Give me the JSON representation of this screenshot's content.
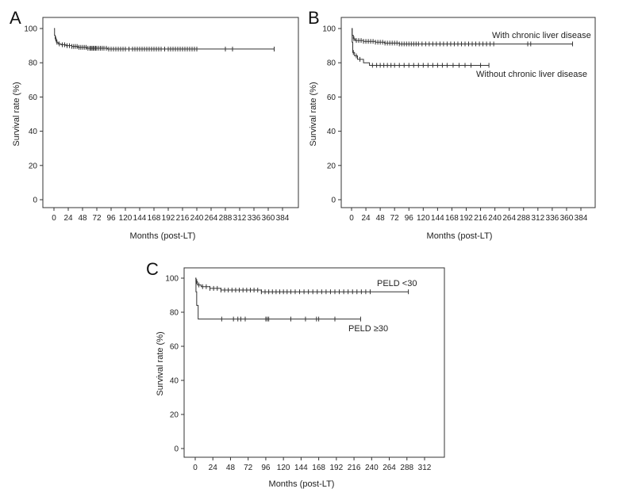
{
  "chart_data": [
    {
      "id": "A",
      "panel_label": "A",
      "type": "line",
      "title": "",
      "xlabel": "Months (post-LT)",
      "ylabel": "Survival rate (%)",
      "xlim": [
        0,
        384
      ],
      "ylim": [
        0,
        100
      ],
      "x_ticks": [
        0,
        24,
        48,
        72,
        96,
        120,
        144,
        168,
        192,
        216,
        240,
        264,
        288,
        312,
        336,
        360,
        384
      ],
      "y_ticks": [
        0,
        20,
        40,
        60,
        80,
        100
      ],
      "grid": false,
      "series": [
        {
          "label": "",
          "steps": [
            [
              0,
              100
            ],
            [
              1,
              96
            ],
            [
              2,
              94
            ],
            [
              4,
              92
            ],
            [
              7,
              91
            ],
            [
              12,
              90.5
            ],
            [
              20,
              90
            ],
            [
              30,
              89.5
            ],
            [
              40,
              89
            ],
            [
              55,
              88.5
            ],
            [
              90,
              88
            ],
            [
              370,
              88
            ]
          ],
          "censored": [
            3,
            5,
            9,
            14,
            18,
            22,
            26,
            30,
            33,
            36,
            39,
            42,
            45,
            48,
            51,
            54,
            57,
            60,
            62,
            64,
            66,
            68,
            70,
            72,
            75,
            78,
            81,
            84,
            88,
            92,
            96,
            100,
            104,
            108,
            112,
            116,
            120,
            126,
            132,
            136,
            140,
            144,
            148,
            152,
            156,
            160,
            164,
            168,
            172,
            176,
            180,
            186,
            192,
            196,
            200,
            204,
            208,
            212,
            216,
            220,
            224,
            228,
            232,
            236,
            240,
            288,
            300,
            370
          ]
        }
      ]
    },
    {
      "id": "B",
      "panel_label": "B",
      "type": "line",
      "title": "",
      "xlabel": "Months (post-LT)",
      "ylabel": "Survival rate (%)",
      "xlim": [
        0,
        384
      ],
      "ylim": [
        0,
        100
      ],
      "x_ticks": [
        0,
        24,
        48,
        72,
        96,
        120,
        144,
        168,
        192,
        216,
        240,
        264,
        288,
        312,
        336,
        360,
        384
      ],
      "y_ticks": [
        0,
        20,
        40,
        60,
        80,
        100
      ],
      "grid": false,
      "series": [
        {
          "label": "With chronic liver disease",
          "steps": [
            [
              0,
              100
            ],
            [
              1,
              96
            ],
            [
              3,
              94
            ],
            [
              6,
              93
            ],
            [
              20,
              92.5
            ],
            [
              40,
              92
            ],
            [
              55,
              91.5
            ],
            [
              80,
              91
            ],
            [
              370,
              91
            ]
          ],
          "censored": [
            4,
            8,
            12,
            16,
            20,
            24,
            28,
            32,
            36,
            40,
            44,
            48,
            52,
            56,
            60,
            64,
            68,
            72,
            76,
            80,
            84,
            88,
            92,
            96,
            100,
            104,
            108,
            112,
            118,
            124,
            130,
            136,
            142,
            148,
            154,
            160,
            166,
            172,
            178,
            184,
            190,
            196,
            202,
            208,
            214,
            220,
            226,
            232,
            238,
            295,
            300,
            370
          ]
        },
        {
          "label": "Without chronic liver disease",
          "steps": [
            [
              0,
              100
            ],
            [
              1,
              92
            ],
            [
              2,
              86
            ],
            [
              5,
              84
            ],
            [
              10,
              82
            ],
            [
              20,
              80
            ],
            [
              30,
              78.5
            ],
            [
              230,
              78.5
            ]
          ],
          "censored": [
            3,
            8,
            14,
            35,
            42,
            48,
            54,
            60,
            66,
            72,
            80,
            88,
            96,
            104,
            112,
            120,
            128,
            136,
            144,
            152,
            160,
            170,
            180,
            190,
            200,
            216,
            230
          ]
        }
      ]
    },
    {
      "id": "C",
      "panel_label": "C",
      "type": "line",
      "title": "",
      "xlabel": "Months (post-LT)",
      "ylabel": "Survival rate (%)",
      "xlim": [
        0,
        312
      ],
      "ylim": [
        0,
        100
      ],
      "x_ticks": [
        0,
        24,
        48,
        72,
        96,
        120,
        144,
        168,
        192,
        216,
        240,
        264,
        288,
        312
      ],
      "y_ticks": [
        0,
        20,
        40,
        60,
        80,
        100
      ],
      "grid": false,
      "series": [
        {
          "label": "PELD <30",
          "steps": [
            [
              0,
              100
            ],
            [
              1,
              98
            ],
            [
              3,
              96
            ],
            [
              8,
              95
            ],
            [
              20,
              94
            ],
            [
              35,
              93
            ],
            [
              90,
              92
            ],
            [
              290,
              92
            ]
          ],
          "censored": [
            2,
            5,
            10,
            15,
            20,
            25,
            30,
            35,
            40,
            45,
            50,
            55,
            60,
            65,
            70,
            75,
            80,
            85,
            90,
            95,
            100,
            105,
            110,
            115,
            120,
            125,
            130,
            136,
            142,
            148,
            154,
            160,
            166,
            172,
            178,
            184,
            190,
            196,
            202,
            208,
            214,
            220,
            226,
            232,
            238,
            290
          ]
        },
        {
          "label": "PELD ≥30",
          "steps": [
            [
              0,
              100
            ],
            [
              1,
              92
            ],
            [
              2,
              84
            ],
            [
              4,
              76
            ],
            [
              225,
              76
            ]
          ],
          "censored": [
            36,
            52,
            58,
            62,
            68,
            96,
            98,
            100,
            130,
            150,
            165,
            168,
            190,
            225
          ]
        }
      ]
    }
  ]
}
